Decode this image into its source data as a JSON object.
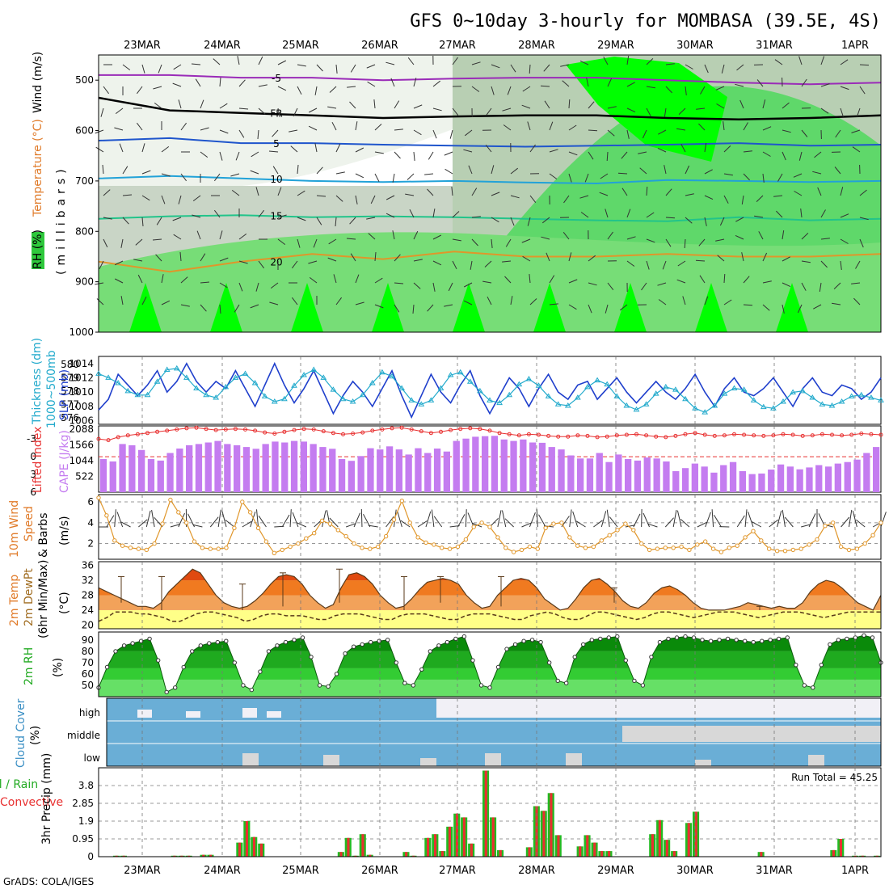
{
  "title": "GFS 0~10day 3-hourly for MOMBASA (39.5E, 4S)",
  "credit": "GrADS: COLA/IGES",
  "colors": {
    "rh_green": "#00ff00",
    "cloud_blue": "#6aaed6",
    "cape": "#c47cf0",
    "precip_green": "#22bb22",
    "precip_red": "#e83030"
  },
  "dates": [
    "23MAR",
    "24MAR",
    "25MAR",
    "26MAR",
    "27MAR",
    "28MAR",
    "29MAR",
    "30MAR",
    "31MAR",
    "1APR"
  ],
  "labels": {
    "p1_ylab_a": "RH (%)",
    "p1_ylab_b": "Temperature (°C)",
    "p1_ylab_c": "Wind (m/s)",
    "p1_ylab_d": "(millibars)",
    "p2_ylab_a": "Thickness (dm)",
    "p2_ylab_b": "1000~500mb",
    "p2_ylab_c": "SLP (mb)",
    "p3_ylab_a": "Lifted Index",
    "p3_ylab_b": "CAPE (J/kg)",
    "p4_ylab_a": "10m Wind",
    "p4_ylab_b": "Speed",
    "p4_ylab_c": "& Barbs",
    "p4_ylab_d": "(m/s)",
    "p5_ylab_a": "2m Temp",
    "p5_ylab_b": "2m DewPt",
    "p5_ylab_c": "(6hr Min/Max)",
    "p5_ylab_d": "(°C)",
    "p6_ylab_a": "2m RH",
    "p6_ylab_b": "(%)",
    "p7_ylab_a": "Cloud Cover",
    "p7_ylab_b": "(%)",
    "p7_high": "high",
    "p7_middle": "middle",
    "p7_low": "low",
    "p8_ylab_a": "Total / Rain",
    "p8_ylab_b": "Convective",
    "p8_ylab_c": "3hr Precip (mm)",
    "p8_total": "Run Total = 45.25"
  },
  "chart_data": [
    {
      "panel": "cross-section",
      "type": "heatmap",
      "yaxis": "pressure (millibars)",
      "y_ticks": [
        500,
        600,
        700,
        800,
        900,
        1000
      ],
      "ylim": [
        1000,
        450
      ],
      "isotherms": [
        {
          "label": "-5",
          "level_mb": [
            490,
            490,
            495,
            495,
            500,
            497,
            495,
            495,
            500,
            505,
            508,
            505
          ]
        },
        {
          "label": "FR",
          "level_mb": [
            535,
            560,
            565,
            570,
            575,
            572,
            570,
            570,
            575,
            578,
            575,
            570
          ]
        },
        {
          "label": "5",
          "level_mb": [
            620,
            615,
            625,
            625,
            628,
            630,
            632,
            630,
            628,
            625,
            630,
            628
          ]
        },
        {
          "label": "10",
          "level_mb": [
            695,
            690,
            695,
            700,
            702,
            700,
            703,
            705,
            698,
            700,
            702,
            700
          ]
        },
        {
          "label": "15",
          "level_mb": [
            775,
            770,
            768,
            772,
            770,
            772,
            775,
            778,
            780,
            772,
            778,
            775
          ]
        },
        {
          "label": "20",
          "level_mb": [
            860,
            880,
            860,
            845,
            855,
            840,
            850,
            850,
            845,
            850,
            850,
            845
          ]
        }
      ]
    },
    {
      "panel": "thickness-slp",
      "type": "line",
      "thickness_ticks": [
        576,
        577,
        578,
        579,
        580
      ],
      "slp_ticks": [
        1006,
        1008,
        1010,
        1012,
        1014
      ],
      "series": [
        {
          "name": "SLP (mb)",
          "values": [
            1007.5,
            1009.0,
            1012.5,
            1011.0,
            1009.5,
            1011.0,
            1013.0,
            1010.0,
            1011.5,
            1014.0,
            1011.5,
            1010.0,
            1011.5,
            1010.5,
            1013.0,
            1010.5,
            1008.0,
            1011.0,
            1014.0,
            1011.0,
            1008.5,
            1010.5,
            1013.0,
            1010.0,
            1007.0,
            1009.5,
            1011.5,
            1010.0,
            1008.0,
            1010.5,
            1013.0,
            1009.5,
            1006.5,
            1009.5,
            1012.5,
            1010.0,
            1008.5,
            1011.0,
            1013.0,
            1009.5,
            1007.0,
            1009.5,
            1012.0,
            1010.5,
            1008.0,
            1010.5,
            1012.5,
            1010.0,
            1009.0,
            1011.0,
            1011.5,
            1009.0,
            1010.5,
            1012.0,
            1010.0,
            1008.5,
            1010.0,
            1011.5,
            1010.0,
            1009.0,
            1010.5,
            1012.5,
            1010.0,
            1008.0,
            1010.5,
            1012.0,
            1010.0,
            1009.5,
            1010.5,
            1012.0,
            1010.0,
            1008.0,
            1010.5,
            1012.0,
            1010.0,
            1009.5,
            1011.0,
            1010.5,
            1009.0,
            1010.0,
            1012.0
          ]
        },
        {
          "name": "Thickness (dm)",
          "values": [
            579.3,
            579.0,
            578.6,
            578.0,
            577.7,
            577.7,
            578.7,
            579.6,
            579.7,
            579.0,
            578.2,
            577.7,
            577.5,
            578.3,
            579.0,
            579.3,
            578.6,
            577.6,
            577.2,
            577.4,
            578.4,
            579.2,
            579.6,
            579.0,
            578.1,
            577.4,
            577.2,
            577.7,
            578.6,
            579.4,
            579.1,
            578.2,
            577.3,
            577.0,
            577.3,
            578.2,
            579.2,
            579.4,
            578.7,
            578.0,
            577.3,
            577.1,
            577.7,
            578.5,
            578.9,
            578.4,
            577.6,
            577.0,
            576.9,
            577.5,
            578.3,
            578.8,
            578.5,
            577.6,
            576.9,
            576.6,
            577.0,
            577.8,
            578.3,
            578.1,
            577.4,
            576.7,
            576.4,
            576.9,
            577.8,
            578.2,
            578.1,
            577.3,
            576.8,
            576.7,
            577.2,
            577.9,
            578.0,
            577.5,
            577.0,
            576.9,
            577.2,
            577.6,
            577.7,
            577.5,
            577.3
          ]
        }
      ]
    },
    {
      "panel": "li-cape",
      "type": "bar",
      "li_ticks": [
        -3,
        0,
        3,
        6
      ],
      "cape_ticks": [
        522,
        1044,
        1566,
        2088
      ],
      "series": [
        {
          "name": "CAPE (J/kg)",
          "values": [
            1100,
            1020,
            1600,
            1560,
            1400,
            1100,
            1050,
            1300,
            1450,
            1560,
            1600,
            1650,
            1700,
            1600,
            1560,
            1500,
            1440,
            1600,
            1680,
            1650,
            1700,
            1680,
            1600,
            1500,
            1440,
            1100,
            1040,
            1200,
            1460,
            1420,
            1520,
            1420,
            1250,
            1460,
            1300,
            1450,
            1350,
            1700,
            1780,
            1840,
            1860,
            1870,
            1750,
            1700,
            1750,
            1650,
            1640,
            1500,
            1420,
            1220,
            1120,
            1120,
            1300,
            1000,
            1250,
            1100,
            1050,
            1150,
            1120,
            1020,
            700,
            800,
            950,
            850,
            650,
            900,
            1000,
            700,
            600,
            620,
            750,
            920,
            850,
            760,
            820,
            900,
            850,
            950,
            1000,
            1080,
            1300,
            1500
          ]
        },
        {
          "name": "Lifted Index",
          "values": [
            -3.0,
            -2.8,
            -3.3,
            -3.6,
            -3.8,
            -4.0,
            -4.2,
            -4.4,
            -4.6,
            -4.8,
            -4.9,
            -4.7,
            -4.5,
            -4.6,
            -4.7,
            -4.6,
            -4.4,
            -4.1,
            -3.9,
            -4.2,
            -4.5,
            -4.7,
            -4.6,
            -4.3,
            -4.0,
            -3.8,
            -3.9,
            -4.1,
            -4.4,
            -4.6,
            -4.8,
            -4.9,
            -4.6,
            -4.3,
            -4.0,
            -4.2,
            -4.5,
            -4.7,
            -4.8,
            -4.7,
            -4.4,
            -4.0,
            -3.8,
            -3.6,
            -3.8,
            -3.7,
            -3.5,
            -3.4,
            -3.4,
            -3.6,
            -3.5,
            -3.3,
            -3.4,
            -3.6,
            -3.7,
            -3.8,
            -3.6,
            -3.4,
            -3.3,
            -3.5,
            -3.8,
            -4.0,
            -3.7,
            -3.5,
            -3.6,
            -3.8,
            -3.7,
            -3.6,
            -3.5,
            -3.6,
            -3.8,
            -3.7,
            -3.5,
            -3.6,
            -3.8,
            -3.7,
            -3.6,
            -3.7,
            -3.9,
            -3.8,
            -3.7
          ]
        }
      ]
    },
    {
      "panel": "10m-wind",
      "type": "line",
      "y_ticks": [
        2,
        4,
        6
      ],
      "series": [
        {
          "name": "10m Wind Speed",
          "values": [
            6.4,
            4.7,
            2.3,
            1.8,
            1.6,
            1.5,
            1.4,
            2.0,
            3.9,
            6.2,
            5.0,
            4.0,
            2.2,
            1.6,
            1.5,
            1.5,
            1.6,
            3.5,
            6.0,
            5.0,
            3.5,
            2.2,
            1.1,
            1.4,
            1.7,
            2.0,
            2.5,
            3.0,
            4.2,
            3.9,
            3.3,
            2.7,
            2.0,
            1.6,
            1.5,
            1.7,
            2.7,
            4.3,
            6.1,
            4.0,
            2.6,
            2.1,
            1.9,
            1.6,
            1.5,
            1.7,
            2.4,
            3.6,
            4.0,
            3.6,
            2.6,
            1.6,
            1.2,
            1.4,
            1.7,
            1.5,
            3.5,
            3.9,
            4.0,
            2.6,
            1.8,
            1.6,
            1.7,
            2.3,
            2.8,
            3.3,
            3.9,
            3.3,
            2.0,
            1.4,
            1.5,
            1.6,
            1.6,
            1.7,
            1.4,
            1.9,
            2.2,
            1.5,
            1.2,
            1.6,
            1.8,
            2.6,
            3.2,
            2.3,
            1.5,
            1.3,
            1.3,
            1.4,
            1.5,
            1.9,
            2.4,
            3.7,
            4.0,
            1.7,
            1.4,
            1.5,
            2.0,
            2.8,
            4.0
          ]
        }
      ]
    },
    {
      "panel": "2m-temp",
      "type": "area",
      "y_ticks": [
        20,
        24,
        28,
        32,
        36
      ],
      "series": [
        {
          "name": "2m Temp",
          "values": [
            30,
            29,
            28,
            27,
            26,
            25,
            25,
            24.5,
            26,
            29,
            31,
            33,
            35,
            34,
            31,
            28,
            26,
            25,
            24.5,
            25,
            26.5,
            28.5,
            31,
            33,
            33.5,
            33,
            31,
            28,
            26,
            24.5,
            25.5,
            30,
            33.5,
            34,
            33,
            31,
            28,
            26,
            24.5,
            25,
            27,
            29.5,
            31.5,
            32,
            32.5,
            32,
            31,
            28,
            26,
            24.5,
            25,
            28,
            30,
            32,
            32.5,
            32,
            30,
            27,
            25.5,
            24,
            24.5,
            27,
            30,
            32,
            32.5,
            31,
            29,
            26.5,
            25,
            24.5,
            26,
            28.5,
            30,
            30.5,
            29.5,
            28,
            26,
            24.5,
            24,
            24,
            24,
            24.5,
            25,
            26,
            25.5,
            25,
            24.5,
            25,
            24.5,
            24.5,
            26,
            29,
            31,
            32,
            31.5,
            30,
            28,
            26,
            25,
            24,
            28
          ]
        },
        {
          "name": "2m DewPt",
          "values": [
            21,
            22,
            23.5,
            23.5,
            23.5,
            23,
            23,
            22.5,
            22,
            21,
            21,
            22,
            23,
            23.5,
            23.5,
            23,
            22.5,
            22,
            21,
            21.5,
            22.5,
            23,
            23,
            22.5,
            22.5,
            22.5,
            22,
            21.5,
            21.5,
            22.5,
            23,
            23,
            23,
            22.5,
            22,
            21.5,
            21.5,
            22.5,
            23,
            23,
            23,
            22.5,
            22,
            21.5,
            21.5,
            22.5,
            23,
            23,
            23,
            22.5,
            22,
            21.5,
            21.5,
            22.5,
            23,
            23.5,
            23,
            22,
            21.5,
            21.5,
            22.5,
            23.5,
            23.5,
            23,
            22.5,
            22,
            21.5,
            22,
            23,
            23.5,
            23.5,
            23,
            22.5,
            22,
            22.5,
            23,
            23.5,
            23.5,
            23.5,
            23,
            22.5,
            22,
            22.5,
            23,
            23.5,
            23.5,
            23.5,
            23,
            22.5,
            22,
            22.5,
            23,
            23.5,
            23.5,
            23.5,
            23.5,
            23.5
          ]
        }
      ]
    },
    {
      "panel": "2m-rh",
      "type": "area",
      "y_ticks": [
        50,
        60,
        70,
        80,
        90
      ],
      "series": [
        {
          "name": "2m RH",
          "values": [
            48,
            66,
            80,
            85,
            87,
            89,
            91,
            72,
            44,
            48,
            66,
            80,
            85,
            87,
            88,
            89,
            70,
            50,
            46,
            62,
            80,
            85,
            88,
            90,
            92,
            75,
            50,
            49,
            60,
            78,
            84,
            86,
            88,
            89,
            90,
            70,
            52,
            50,
            64,
            80,
            85,
            88,
            91,
            93,
            72,
            50,
            48,
            66,
            82,
            86,
            89,
            90,
            88,
            70,
            54,
            52,
            75,
            86,
            90,
            91,
            92,
            93,
            72,
            54,
            50,
            75,
            88,
            91,
            92,
            93,
            92,
            90,
            89,
            90,
            91,
            90,
            89,
            88,
            89,
            90,
            91,
            92,
            68,
            50,
            48,
            68,
            86,
            90,
            91,
            92,
            94,
            92,
            70
          ]
        }
      ]
    },
    {
      "panel": "cloud-cover",
      "type": "bar",
      "layers": [
        "high",
        "middle",
        "low"
      ]
    },
    {
      "panel": "precip",
      "type": "bar",
      "y_ticks": [
        0,
        0.95,
        1.9,
        2.85,
        3.8
      ],
      "series": [
        {
          "name": "Total",
          "values": [
            0,
            0,
            0.05,
            0.05,
            0,
            0,
            0,
            0,
            0,
            0,
            0.05,
            0.05,
            0.05,
            0,
            0.1,
            0.1,
            0,
            0,
            0,
            0.75,
            1.9,
            1.05,
            0.7,
            0,
            0,
            0,
            0,
            0,
            0,
            0,
            0,
            0,
            0,
            0.25,
            1.0,
            0.05,
            1.2,
            0.1,
            0,
            0,
            0,
            0,
            0.25,
            0.05,
            0,
            1.0,
            1.2,
            0.3,
            1.6,
            2.3,
            2.1,
            0.7,
            0,
            4.6,
            2.1,
            0.35,
            0,
            0,
            0,
            0.5,
            2.7,
            2.45,
            3.4,
            1.15,
            0,
            0,
            0.55,
            1.15,
            0.75,
            0.3,
            0.3,
            0,
            0,
            0,
            0,
            0,
            1.2,
            1.95,
            0.9,
            0.3,
            0,
            1.8,
            2.4,
            0,
            0,
            0,
            0,
            0,
            0,
            0,
            0,
            0.25,
            0,
            0,
            0,
            0,
            0,
            0,
            0,
            0,
            0,
            0.35,
            0.95,
            0,
            0.05,
            0.05,
            0,
            0.05
          ]
        }
      ]
    }
  ]
}
